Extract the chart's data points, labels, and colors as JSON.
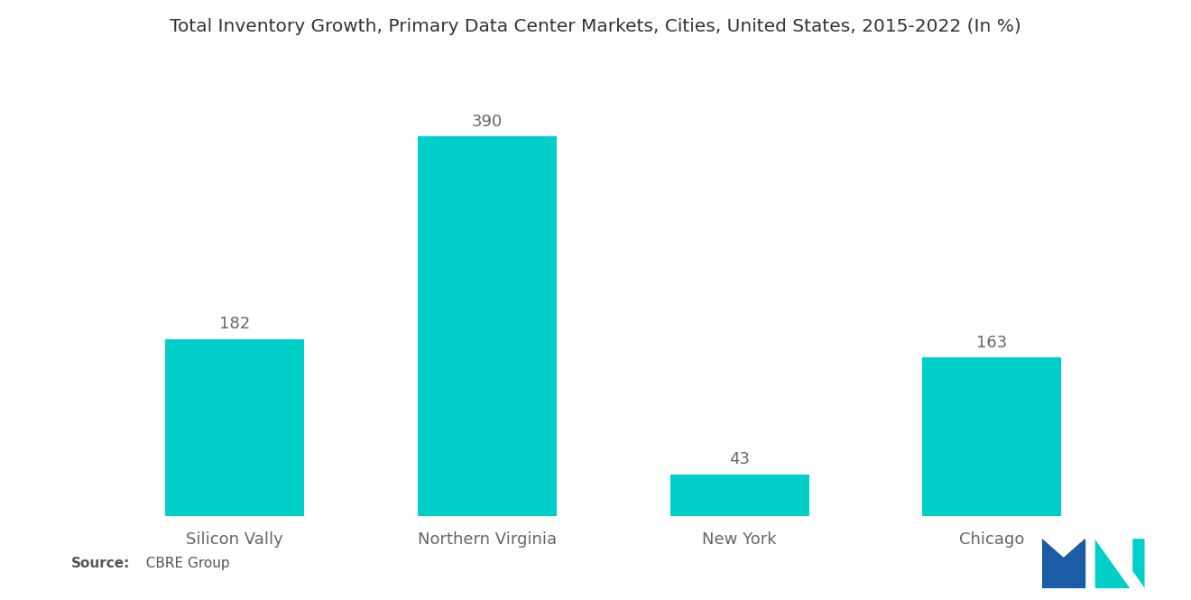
{
  "title": "Total Inventory Growth, Primary Data Center Markets, Cities, United States, 2015-2022 (In %)",
  "categories": [
    "Silicon Vally",
    "Northern Virginia",
    "New York",
    "Chicago"
  ],
  "values": [
    182,
    390,
    43,
    163
  ],
  "bar_color": "#00CEC8",
  "background_color": "#ffffff",
  "title_fontsize": 14.5,
  "label_fontsize": 13,
  "value_fontsize": 13,
  "source_bold": "Source:",
  "source_rest": "  CBRE Group",
  "ylim": [
    0,
    450
  ],
  "bar_width": 0.55
}
